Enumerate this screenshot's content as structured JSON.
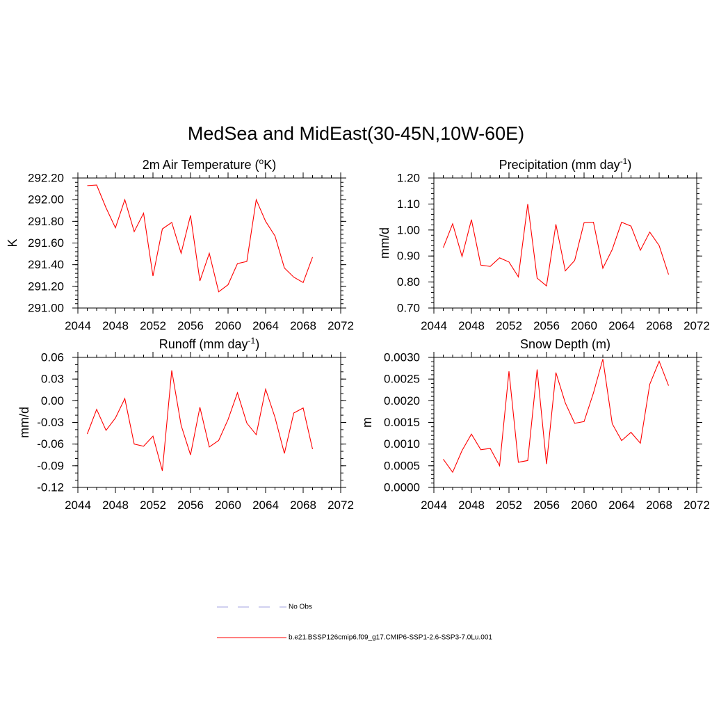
{
  "figure_title": "MedSea and MidEast(30-45N,10W-60E)",
  "legend": {
    "items": [
      {
        "label": "No Obs",
        "style": "dashed",
        "color": "#a3a3e0"
      },
      {
        "label": "b.e21.BSSP126cmip6.f09_g17.CMIP6-SSP1-2.6-SSP3-7.0Lu.001",
        "style": "solid",
        "color": "#ff0000"
      }
    ]
  },
  "chart_data": [
    {
      "type": "line",
      "title": "2m Air Temperature (",
      "title_sup": "o",
      "title_after": "K)",
      "ylabel": "K",
      "xlabel": "",
      "xlim": [
        2044,
        2072
      ],
      "xticks": [
        2044,
        2048,
        2052,
        2056,
        2060,
        2064,
        2068,
        2072
      ],
      "xtick_labels": [
        "2044",
        "2048",
        "2052",
        "2056",
        "2060",
        "2064",
        "2068",
        "2072"
      ],
      "ylim": [
        291.0,
        292.2
      ],
      "yticks": [
        291.0,
        291.2,
        291.4,
        291.6,
        291.8,
        292.0,
        292.2
      ],
      "ytick_labels": [
        "291.00",
        "291.20",
        "291.40",
        "291.60",
        "291.80",
        "292.00",
        "292.20"
      ],
      "yminor": 0.04,
      "series": [
        {
          "color": "#ff0000",
          "x": [
            2045,
            2046,
            2047,
            2048,
            2049,
            2050,
            2051,
            2052,
            2053,
            2054,
            2055,
            2056,
            2057,
            2058,
            2059,
            2060,
            2061,
            2062,
            2063,
            2064,
            2065,
            2066,
            2067,
            2068,
            2069
          ],
          "y": [
            292.13,
            292.135,
            291.925,
            291.74,
            292.0,
            291.705,
            291.875,
            291.295,
            291.73,
            291.79,
            291.505,
            291.855,
            291.25,
            291.505,
            291.15,
            291.215,
            291.41,
            291.43,
            292.0,
            291.8,
            291.665,
            291.37,
            291.285,
            291.235,
            291.47
          ]
        }
      ]
    },
    {
      "type": "line",
      "title": "Precipitation (mm day",
      "title_sup": "-1",
      "title_after": ")",
      "ylabel": "mm/d",
      "xlabel": "",
      "xlim": [
        2044,
        2072
      ],
      "xticks": [
        2044,
        2048,
        2052,
        2056,
        2060,
        2064,
        2068,
        2072
      ],
      "xtick_labels": [
        "2044",
        "2048",
        "2052",
        "2056",
        "2060",
        "2064",
        "2068",
        "2072"
      ],
      "ylim": [
        0.7,
        1.2
      ],
      "yticks": [
        0.7,
        0.8,
        0.9,
        1.0,
        1.1,
        1.2
      ],
      "ytick_labels": [
        "0.70",
        "0.80",
        "0.90",
        "1.00",
        "1.10",
        "1.20"
      ],
      "yminor": 0.02,
      "series": [
        {
          "color": "#ff0000",
          "x": [
            2045,
            2046,
            2047,
            2048,
            2049,
            2050,
            2051,
            2052,
            2053,
            2054,
            2055,
            2056,
            2057,
            2058,
            2059,
            2060,
            2061,
            2062,
            2063,
            2064,
            2065,
            2066,
            2067,
            2068,
            2069
          ],
          "y": [
            0.932,
            1.024,
            0.898,
            1.04,
            0.865,
            0.86,
            0.893,
            0.877,
            0.82,
            1.1,
            0.815,
            0.785,
            1.022,
            0.843,
            0.883,
            1.028,
            1.03,
            0.853,
            0.925,
            1.03,
            1.015,
            0.922,
            0.992,
            0.94,
            0.829
          ]
        }
      ]
    },
    {
      "type": "line",
      "title": "Runoff (mm day",
      "title_sup": "-1",
      "title_after": ")",
      "ylabel": "mm/d",
      "xlabel": "",
      "xlim": [
        2044,
        2072
      ],
      "xticks": [
        2044,
        2048,
        2052,
        2056,
        2060,
        2064,
        2068,
        2072
      ],
      "xtick_labels": [
        "2044",
        "2048",
        "2052",
        "2056",
        "2060",
        "2064",
        "2068",
        "2072"
      ],
      "ylim": [
        -0.12,
        0.06
      ],
      "yticks": [
        -0.12,
        -0.09,
        -0.06,
        -0.03,
        0.0,
        0.03,
        0.06
      ],
      "ytick_labels": [
        "-0.12",
        "-0.09",
        "-0.06",
        "-0.03",
        "0.00",
        "0.03",
        "0.06"
      ],
      "yminor": 0.01,
      "series": [
        {
          "color": "#ff0000",
          "x": [
            2045,
            2046,
            2047,
            2048,
            2049,
            2050,
            2051,
            2052,
            2053,
            2054,
            2055,
            2056,
            2057,
            2058,
            2059,
            2060,
            2061,
            2062,
            2063,
            2064,
            2065,
            2066,
            2067,
            2068,
            2069
          ],
          "y": [
            -0.046,
            -0.012,
            -0.041,
            -0.024,
            0.003,
            -0.06,
            -0.063,
            -0.049,
            -0.097,
            0.042,
            -0.034,
            -0.075,
            -0.009,
            -0.064,
            -0.055,
            -0.026,
            0.011,
            -0.031,
            -0.047,
            0.016,
            -0.023,
            -0.073,
            -0.017,
            -0.01,
            -0.067
          ]
        }
      ]
    },
    {
      "type": "line",
      "title": "Snow Depth (m)",
      "title_sup": "",
      "title_after": "",
      "ylabel": "m",
      "xlabel": "",
      "xlim": [
        2044,
        2072
      ],
      "xticks": [
        2044,
        2048,
        2052,
        2056,
        2060,
        2064,
        2068,
        2072
      ],
      "xtick_labels": [
        "2044",
        "2048",
        "2052",
        "2056",
        "2060",
        "2064",
        "2068",
        "2072"
      ],
      "ylim": [
        0.0,
        0.003
      ],
      "yticks": [
        0.0,
        0.0005,
        0.001,
        0.0015,
        0.002,
        0.0025,
        0.003
      ],
      "ytick_labels": [
        "0.0000",
        "0.0005",
        "0.0010",
        "0.0015",
        "0.0020",
        "0.0025",
        "0.0030"
      ],
      "yminor": 0.0001,
      "series": [
        {
          "color": "#ff0000",
          "x": [
            2045,
            2046,
            2047,
            2048,
            2049,
            2050,
            2051,
            2052,
            2053,
            2054,
            2055,
            2056,
            2057,
            2058,
            2059,
            2060,
            2061,
            2062,
            2063,
            2064,
            2065,
            2066,
            2067,
            2068,
            2069
          ],
          "y": [
            0.00065,
            0.00035,
            0.00085,
            0.00123,
            0.00087,
            0.0009,
            0.0005,
            0.00268,
            0.00058,
            0.00062,
            0.00272,
            0.00054,
            0.00265,
            0.00195,
            0.00148,
            0.00152,
            0.00218,
            0.00296,
            0.00147,
            0.00108,
            0.00127,
            0.00102,
            0.00238,
            0.00291,
            0.00235
          ]
        }
      ]
    }
  ]
}
